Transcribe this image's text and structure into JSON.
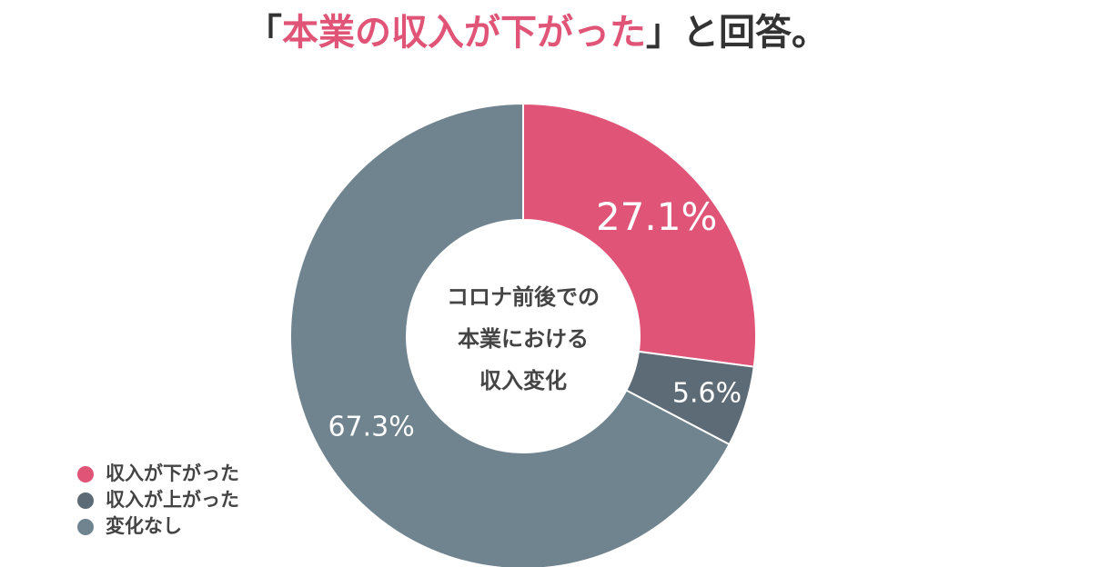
{
  "chart_data": {
    "type": "donut",
    "title": [
      "「",
      "本業の収入が下がった",
      "」と回答。"
    ],
    "center_label": [
      "コロナ前後での",
      "本業における",
      "収入変化"
    ],
    "categories": [
      "収入が下がった",
      "収入が上がった",
      "変化なし"
    ],
    "values": [
      27.1,
      5.6,
      67.3
    ],
    "value_labels": [
      "27.1%",
      "5.6%",
      "67.3%"
    ],
    "colors": [
      "#e05577",
      "#5d6b76",
      "#70848f"
    ],
    "title_highlight_color": "#e05577"
  }
}
